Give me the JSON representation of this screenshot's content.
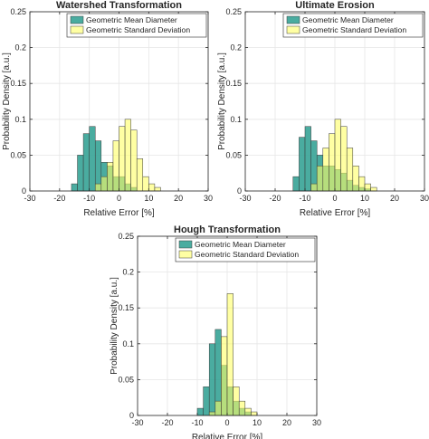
{
  "charts": [
    {
      "type": "bar",
      "title": "Watershed Transformation",
      "xlabel": "Relative Error [%]",
      "ylabel": "Probability Density [a.u.]",
      "xlim": [
        -30,
        30
      ],
      "ylim": [
        0,
        0.25
      ],
      "x_ticks": [
        "-30",
        "-20",
        "-10",
        "0",
        "10",
        "20",
        "30"
      ],
      "y_ticks": [
        "0",
        "0.05",
        "0.1",
        "0.15",
        "0.2",
        "0.25"
      ],
      "legend_location": "top-right",
      "grid": true,
      "bin_width": 2,
      "series": [
        {
          "name": "Geometric Mean Diameter",
          "color": "#2A9D8F",
          "bins": [
            {
              "x0": -16,
              "v": 0.01
            },
            {
              "x0": -14,
              "v": 0.05
            },
            {
              "x0": -12,
              "v": 0.08
            },
            {
              "x0": -10,
              "v": 0.09
            },
            {
              "x0": -8,
              "v": 0.07
            },
            {
              "x0": -6,
              "v": 0.04
            },
            {
              "x0": -4,
              "v": 0.035
            },
            {
              "x0": -2,
              "v": 0.02
            },
            {
              "x0": 0,
              "v": 0.02
            },
            {
              "x0": 2,
              "v": 0.01
            },
            {
              "x0": 4,
              "v": 0.005
            }
          ]
        },
        {
          "name": "Geometric Standard Deviation",
          "color": "#FFFF66",
          "bins": [
            {
              "x0": -8,
              "v": 0.01
            },
            {
              "x0": -6,
              "v": 0.02
            },
            {
              "x0": -4,
              "v": 0.04
            },
            {
              "x0": -2,
              "v": 0.07
            },
            {
              "x0": 0,
              "v": 0.09
            },
            {
              "x0": 2,
              "v": 0.1
            },
            {
              "x0": 4,
              "v": 0.085
            },
            {
              "x0": 6,
              "v": 0.045
            },
            {
              "x0": 8,
              "v": 0.02
            },
            {
              "x0": 10,
              "v": 0.01
            },
            {
              "x0": 12,
              "v": 0.005
            }
          ]
        }
      ]
    },
    {
      "type": "bar",
      "title": "Ultimate Erosion",
      "xlabel": "Relative Error [%]",
      "ylabel": "Probability Density [a.u.]",
      "xlim": [
        -30,
        30
      ],
      "ylim": [
        0,
        0.25
      ],
      "x_ticks": [
        "-30",
        "-20",
        "-10",
        "0",
        "10",
        "20",
        "30"
      ],
      "y_ticks": [
        "0",
        "0.05",
        "0.1",
        "0.15",
        "0.2",
        "0.25"
      ],
      "legend_location": "top-right",
      "grid": true,
      "bin_width": 2,
      "series": [
        {
          "name": "Geometric Mean Diameter",
          "color": "#2A9D8F",
          "bins": [
            {
              "x0": -14,
              "v": 0.02
            },
            {
              "x0": -12,
              "v": 0.075
            },
            {
              "x0": -10,
              "v": 0.09
            },
            {
              "x0": -8,
              "v": 0.07
            },
            {
              "x0": -6,
              "v": 0.05
            },
            {
              "x0": -4,
              "v": 0.035
            },
            {
              "x0": -2,
              "v": 0.035
            },
            {
              "x0": 0,
              "v": 0.03
            },
            {
              "x0": 2,
              "v": 0.025
            },
            {
              "x0": 4,
              "v": 0.015
            },
            {
              "x0": 6,
              "v": 0.008
            },
            {
              "x0": 8,
              "v": 0.005
            },
            {
              "x0": 10,
              "v": 0.003
            }
          ]
        },
        {
          "name": "Geometric Standard Deviation",
          "color": "#FFFF66",
          "bins": [
            {
              "x0": -8,
              "v": 0.01
            },
            {
              "x0": -6,
              "v": 0.035
            },
            {
              "x0": -4,
              "v": 0.06
            },
            {
              "x0": -2,
              "v": 0.08
            },
            {
              "x0": 0,
              "v": 0.1
            },
            {
              "x0": 2,
              "v": 0.09
            },
            {
              "x0": 4,
              "v": 0.06
            },
            {
              "x0": 6,
              "v": 0.035
            },
            {
              "x0": 8,
              "v": 0.02
            },
            {
              "x0": 10,
              "v": 0.01
            },
            {
              "x0": 12,
              "v": 0.005
            }
          ]
        }
      ]
    },
    {
      "type": "bar",
      "title": "Hough Transformation",
      "xlabel": "Relative Error [%]",
      "ylabel": "Probability Density [a.u.]",
      "xlim": [
        -30,
        30
      ],
      "ylim": [
        0,
        0.25
      ],
      "x_ticks": [
        "-30",
        "-20",
        "-10",
        "0",
        "10",
        "20",
        "30"
      ],
      "y_ticks": [
        "0",
        "0.05",
        "0.1",
        "0.15",
        "0.2",
        "0.25"
      ],
      "legend_location": "top-right",
      "grid": true,
      "bin_width": 2,
      "series": [
        {
          "name": "Geometric Mean Diameter",
          "color": "#2A9D8F",
          "bins": [
            {
              "x0": -10,
              "v": 0.01
            },
            {
              "x0": -8,
              "v": 0.04
            },
            {
              "x0": -6,
              "v": 0.1
            },
            {
              "x0": -4,
              "v": 0.12
            },
            {
              "x0": -2,
              "v": 0.07
            },
            {
              "x0": 0,
              "v": 0.04
            },
            {
              "x0": 2,
              "v": 0.02
            },
            {
              "x0": 4,
              "v": 0.01
            },
            {
              "x0": 6,
              "v": 0.005
            }
          ]
        },
        {
          "name": "Geometric Standard Deviation",
          "color": "#FFFF66",
          "bins": [
            {
              "x0": -6,
              "v": 0.005
            },
            {
              "x0": -4,
              "v": 0.02
            },
            {
              "x0": -2,
              "v": 0.11
            },
            {
              "x0": 0,
              "v": 0.17
            },
            {
              "x0": 2,
              "v": 0.04
            },
            {
              "x0": 4,
              "v": 0.02
            },
            {
              "x0": 6,
              "v": 0.01
            },
            {
              "x0": 8,
              "v": 0.005
            }
          ]
        }
      ]
    }
  ],
  "chart_data": [
    {
      "type": "bar",
      "title": "Watershed Transformation",
      "xlabel": "Relative Error [%]",
      "ylabel": "Probability Density [a.u.]",
      "xlim": [
        -30,
        30
      ],
      "ylim": [
        0,
        0.25
      ],
      "x": [
        -15,
        -13,
        -11,
        -9,
        -7,
        -5,
        -3,
        -1,
        1,
        3,
        5,
        7,
        9,
        11,
        13
      ],
      "series": [
        {
          "name": "Geometric Mean Diameter",
          "values": [
            0.01,
            0.05,
            0.08,
            0.09,
            0.07,
            0.04,
            0.035,
            0.02,
            0.02,
            0.01,
            0.005,
            0,
            0,
            0,
            0
          ]
        },
        {
          "name": "Geometric Standard Deviation",
          "values": [
            0,
            0,
            0,
            0,
            0.01,
            0.02,
            0.04,
            0.07,
            0.09,
            0.1,
            0.085,
            0.045,
            0.02,
            0.01,
            0.005
          ]
        }
      ]
    },
    {
      "type": "bar",
      "title": "Ultimate Erosion",
      "xlabel": "Relative Error [%]",
      "ylabel": "Probability Density [a.u.]",
      "xlim": [
        -30,
        30
      ],
      "ylim": [
        0,
        0.25
      ],
      "x": [
        -13,
        -11,
        -9,
        -7,
        -5,
        -3,
        -1,
        1,
        3,
        5,
        7,
        9,
        11,
        13
      ],
      "series": [
        {
          "name": "Geometric Mean Diameter",
          "values": [
            0.02,
            0.075,
            0.09,
            0.07,
            0.05,
            0.035,
            0.035,
            0.03,
            0.025,
            0.015,
            0.008,
            0.005,
            0.003,
            0
          ]
        },
        {
          "name": "Geometric Standard Deviation",
          "values": [
            0,
            0,
            0,
            0.01,
            0.035,
            0.06,
            0.08,
            0.1,
            0.09,
            0.06,
            0.035,
            0.02,
            0.01,
            0.005
          ]
        }
      ]
    },
    {
      "type": "bar",
      "title": "Hough Transformation",
      "xlabel": "Relative Error [%]",
      "ylabel": "Probability Density [a.u.]",
      "xlim": [
        -30,
        30
      ],
      "ylim": [
        0,
        0.25
      ],
      "x": [
        -9,
        -7,
        -5,
        -3,
        -1,
        1,
        3,
        5,
        7,
        9
      ],
      "series": [
        {
          "name": "Geometric Mean Diameter",
          "values": [
            0.01,
            0.04,
            0.1,
            0.12,
            0.07,
            0.04,
            0.02,
            0.01,
            0.005,
            0
          ]
        },
        {
          "name": "Geometric Standard Deviation",
          "values": [
            0,
            0,
            0.005,
            0.02,
            0.11,
            0.17,
            0.04,
            0.02,
            0.01,
            0.005
          ]
        }
      ]
    }
  ]
}
